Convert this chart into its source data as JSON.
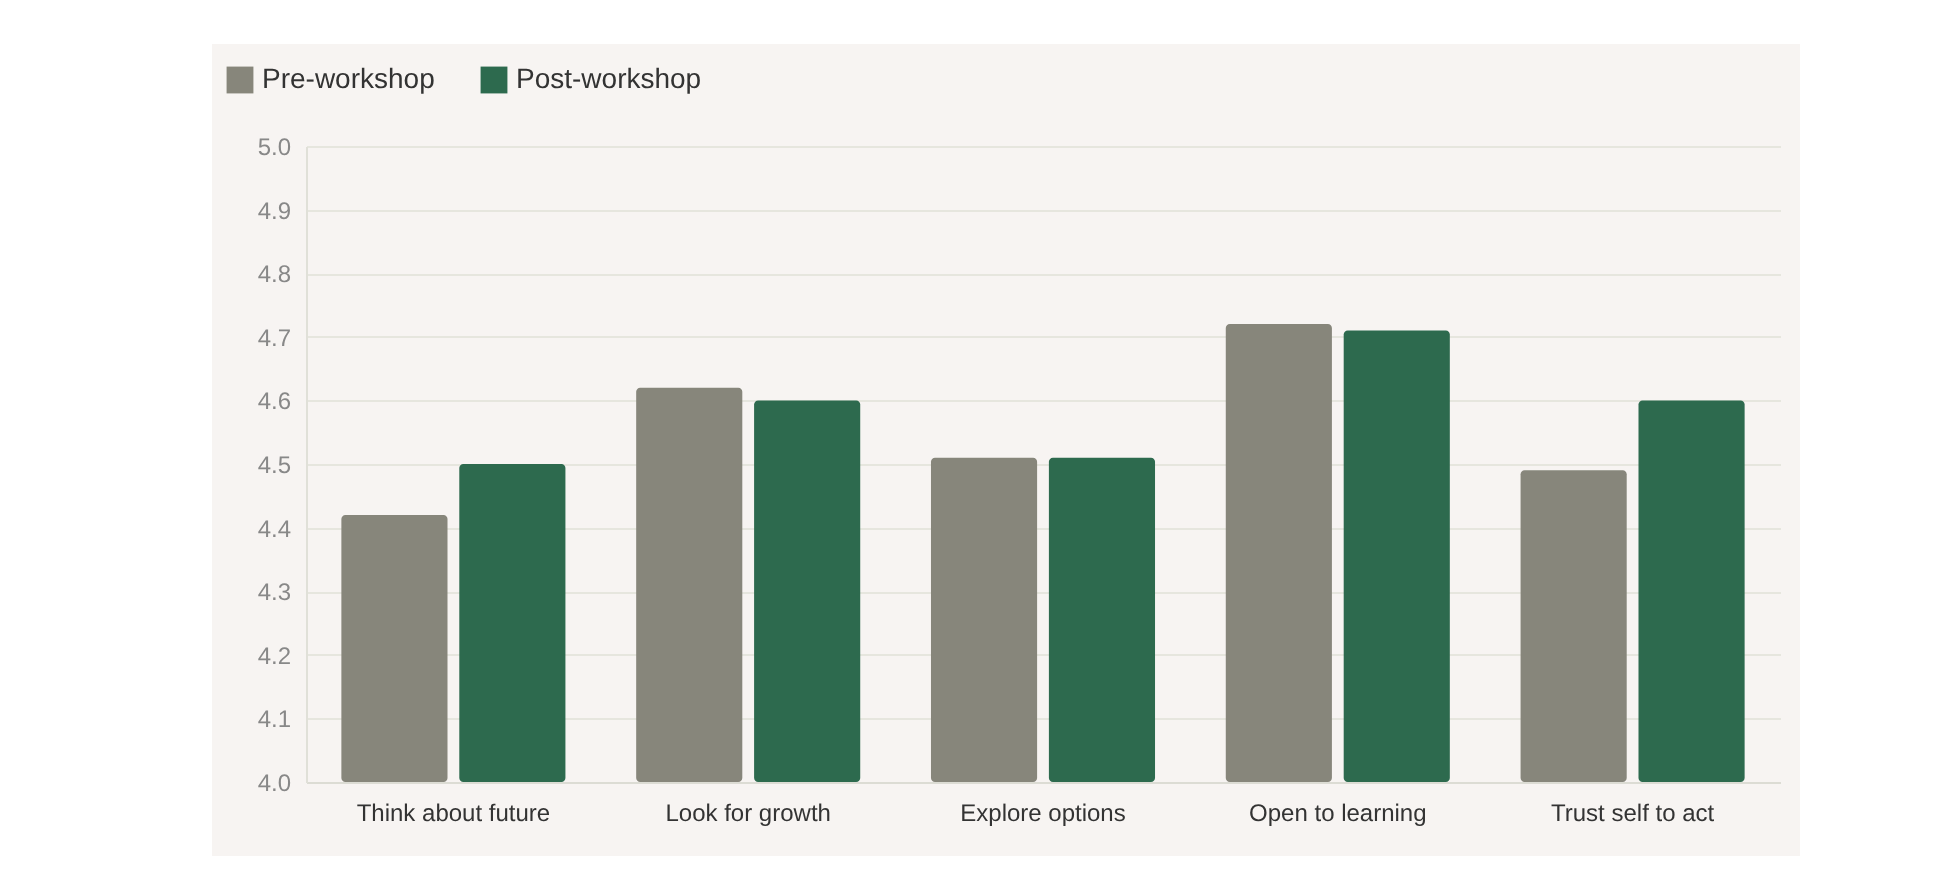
{
  "chart_data": {
    "type": "bar",
    "categories": [
      "Think about future",
      "Look for growth",
      "Explore options",
      "Open to learning",
      "Trust self to act"
    ],
    "series": [
      {
        "name": "Pre-workshop",
        "color": "#87867b",
        "values": [
          4.42,
          4.62,
          4.51,
          4.72,
          4.49
        ]
      },
      {
        "name": "Post-workshop",
        "color": "#2d6a4e",
        "values": [
          4.5,
          4.6,
          4.51,
          4.71,
          4.6
        ]
      }
    ],
    "ylim": [
      4.0,
      5.0
    ],
    "yticks": [
      {
        "value": 4,
        "label": "4.0"
      },
      4.1,
      4.2,
      4.3,
      4.4,
      4.5,
      4.6,
      4.7,
      4.8,
      4.9,
      {
        "value": 5,
        "label": "5.0"
      }
    ],
    "grid": "y",
    "legend": "top left"
  }
}
